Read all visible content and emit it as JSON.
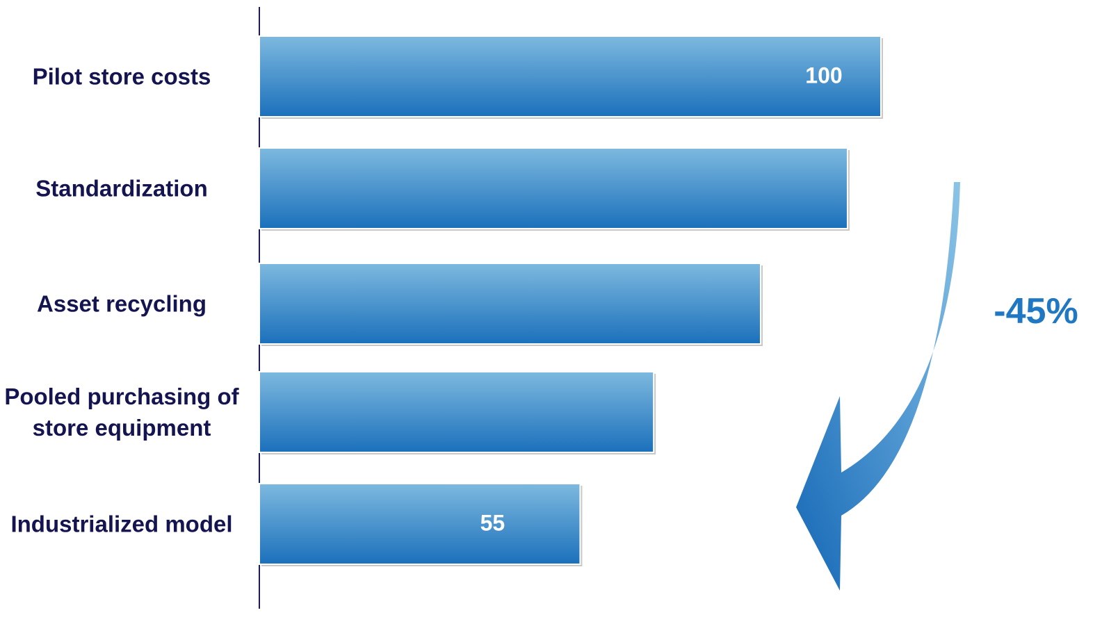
{
  "chart_data": {
    "type": "bar",
    "orientation": "horizontal",
    "categories": [
      "Pilot store costs",
      "Standardization",
      "Asset recycling",
      "Pooled purchasing of store equipment",
      "Industrialized model"
    ],
    "values": [
      100,
      95,
      82,
      66,
      55
    ],
    "value_labels": [
      "100",
      null,
      null,
      null,
      "55"
    ],
    "xlim": [
      7,
      100
    ],
    "colors": [
      "#7db9df",
      "#1b70bb"
    ],
    "annotation": "-45%"
  }
}
